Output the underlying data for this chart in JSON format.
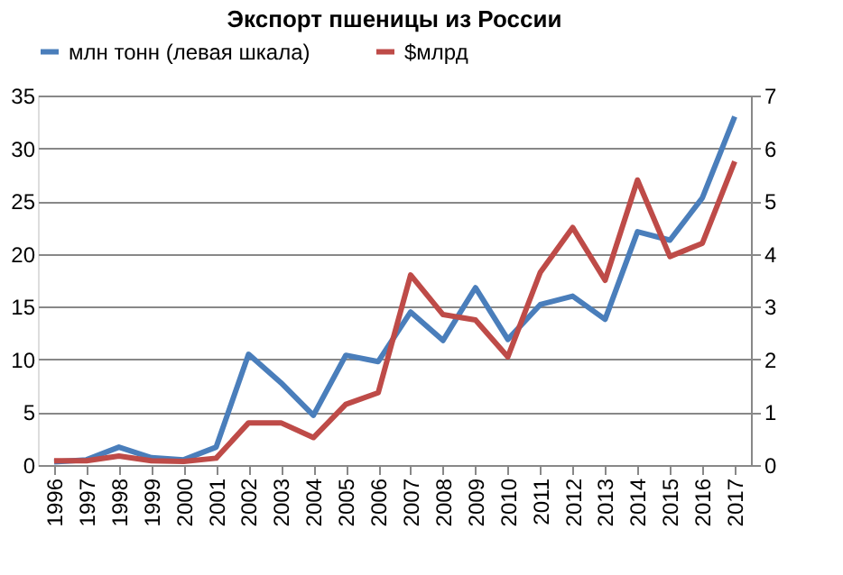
{
  "chart_data": {
    "type": "line",
    "title": "Экспорт пшеницы из России",
    "categories": [
      "1996",
      "1997",
      "1998",
      "1999",
      "2000",
      "2001",
      "2002",
      "2003",
      "2004",
      "2005",
      "2006",
      "2007",
      "2008",
      "2009",
      "2010",
      "2011",
      "2012",
      "2013",
      "2014",
      "2015",
      "2016",
      "2017"
    ],
    "series": [
      {
        "name": "млн тонн (левая шкала)",
        "color": "#4a7ebb",
        "values": [
          0.3,
          0.5,
          1.7,
          0.7,
          0.5,
          1.7,
          10.5,
          7.8,
          4.7,
          10.4,
          9.8,
          14.5,
          11.8,
          16.8,
          11.9,
          15.2,
          16.0,
          13.8,
          22.1,
          21.3,
          25.3,
          33.0
        ]
      },
      {
        "name": "$млрд",
        "color": "#be4b48",
        "axis": "y2",
        "values": [
          0.08,
          0.08,
          0.17,
          0.08,
          0.07,
          0.13,
          0.8,
          0.8,
          0.52,
          1.15,
          1.37,
          3.6,
          2.85,
          2.75,
          2.05,
          3.65,
          4.5,
          3.5,
          5.4,
          3.95,
          4.2,
          5.75
        ]
      }
    ],
    "ylim": [
      0,
      35
    ],
    "yticks": [
      0,
      5,
      10,
      15,
      20,
      25,
      30,
      35
    ],
    "y2lim": [
      0,
      7
    ],
    "y2ticks": [
      0,
      1,
      2,
      3,
      4,
      5,
      6,
      7
    ],
    "grid": "y",
    "legend": "top",
    "marker": "none",
    "line_style": "solid"
  }
}
